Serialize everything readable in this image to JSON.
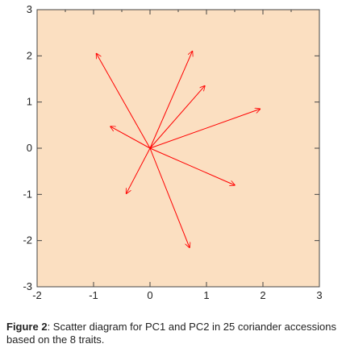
{
  "chart_data": {
    "type": "biplot",
    "title": "",
    "xlabel": "",
    "ylabel": "",
    "xlim": [
      -2,
      3
    ],
    "ylim": [
      -3,
      3
    ],
    "x_ticks": [
      -2,
      -1,
      0,
      1,
      2,
      3
    ],
    "y_ticks": [
      -3,
      -2,
      -1,
      0,
      1,
      2,
      3
    ],
    "x_tick_labels": [
      "-2",
      "-1",
      "0",
      "1",
      "2",
      "3"
    ],
    "y_tick_labels": [
      "-3",
      "-2",
      "-1",
      "0",
      "1",
      "2",
      "3"
    ],
    "origin": [
      0,
      0
    ],
    "vectors": [
      {
        "x": -0.95,
        "y": 2.05
      },
      {
        "x": 0.75,
        "y": 2.1
      },
      {
        "x": 0.97,
        "y": 1.35
      },
      {
        "x": 1.95,
        "y": 0.85
      },
      {
        "x": -0.7,
        "y": 0.47
      },
      {
        "x": 1.5,
        "y": -0.8
      },
      {
        "x": -0.42,
        "y": -0.98
      },
      {
        "x": 0.7,
        "y": -2.15
      }
    ],
    "plot_background": "#fbdfc1",
    "arrow_color": "#ff0000",
    "grid": false
  },
  "caption": {
    "label": "Figure 2",
    "text": ": Scatter diagram for PC1 and PC2 in 25 coriander accessions based on the 8 traits."
  }
}
